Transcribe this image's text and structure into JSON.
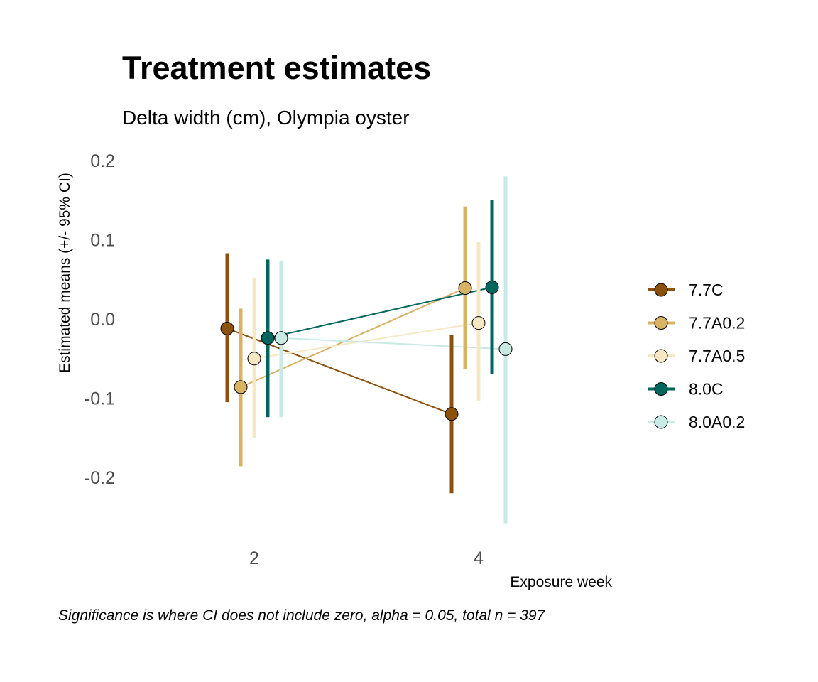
{
  "chart_data": {
    "type": "line",
    "title": "Treatment estimates",
    "subtitle": "Delta width (cm), Olympia oyster",
    "xlabel": "Exposure week",
    "ylabel": "Estimated means (+/- 95% CI)",
    "caption": "Significance is where CI does not include zero, alpha = 0.05, total n = 397",
    "categories": [
      "2",
      "4"
    ],
    "ylim": [
      -0.27,
      0.22
    ],
    "yticks": [
      "0.2",
      "0.1",
      "0.0",
      "-0.1",
      "-0.2"
    ],
    "ytick_values": [
      0.2,
      0.1,
      0.0,
      -0.1,
      -0.2
    ],
    "legend_position": "right",
    "grid": false,
    "error_bars": "95% CI",
    "series": [
      {
        "name": "7.7C",
        "color": "#8c510a",
        "values": [
          -0.012,
          -0.12
        ],
        "lower": [
          -0.105,
          -0.22
        ],
        "upper": [
          0.083,
          -0.02
        ]
      },
      {
        "name": "7.7A0.2",
        "color": "#d8b365",
        "values": [
          -0.086,
          0.039
        ],
        "lower": [
          -0.186,
          -0.063
        ],
        "upper": [
          0.013,
          0.142
        ]
      },
      {
        "name": "7.7A0.5",
        "color": "#f6e8c3",
        "values": [
          -0.05,
          -0.005
        ],
        "lower": [
          -0.15,
          -0.103
        ],
        "upper": [
          0.051,
          0.097
        ]
      },
      {
        "name": "8.0C",
        "color": "#01665e",
        "values": [
          -0.024,
          0.04
        ],
        "lower": [
          -0.124,
          -0.07
        ],
        "upper": [
          0.075,
          0.15
        ]
      },
      {
        "name": "8.0A0.2",
        "color": "#c7eae5",
        "values": [
          -0.024,
          -0.038
        ],
        "lower": [
          -0.124,
          -0.258
        ],
        "upper": [
          0.073,
          0.18
        ]
      }
    ]
  }
}
